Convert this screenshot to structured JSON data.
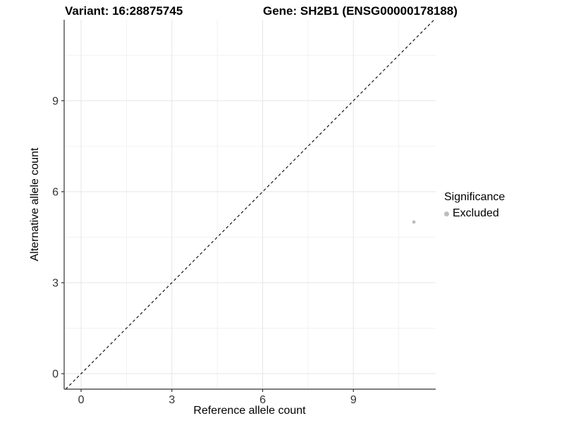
{
  "titles": {
    "left": "Variant: 16:28875745",
    "right": "Gene: SH2B1 (ENSG00000178188)"
  },
  "chart_data": {
    "type": "scatter",
    "title": "Variant: 16:28875745   Gene: SH2B1 (ENSG00000178188)",
    "xlabel": "Reference allele count",
    "ylabel": "Alternative allele count",
    "xlim": [
      -0.56,
      11.72
    ],
    "ylim": [
      -0.51,
      11.67
    ],
    "x_ticks": [
      0,
      3,
      6,
      9
    ],
    "y_ticks": [
      0,
      3,
      6,
      9
    ],
    "x_minor_ticks": [
      1.5,
      4.5,
      7.5,
      10.5
    ],
    "y_minor_ticks": [
      1.5,
      4.5,
      7.5,
      10.5
    ],
    "grid": {
      "on": true,
      "major_color": "#e5e5e5",
      "minor_color": "#f2f2f2"
    },
    "axis_color": "#333333",
    "tick_label_color": "#333333",
    "series": [
      {
        "name": "Excluded",
        "color": "#bdbdbd",
        "points": [
          {
            "x": 11,
            "y": 5
          }
        ]
      }
    ],
    "reference_line": {
      "type": "abline",
      "slope": 1,
      "intercept": 0,
      "style": "dashed",
      "color": "#000000"
    },
    "legend": {
      "position": "right",
      "title": "Significance",
      "items": [
        {
          "label": "Excluded",
          "color": "#bdbdbd"
        }
      ]
    }
  }
}
